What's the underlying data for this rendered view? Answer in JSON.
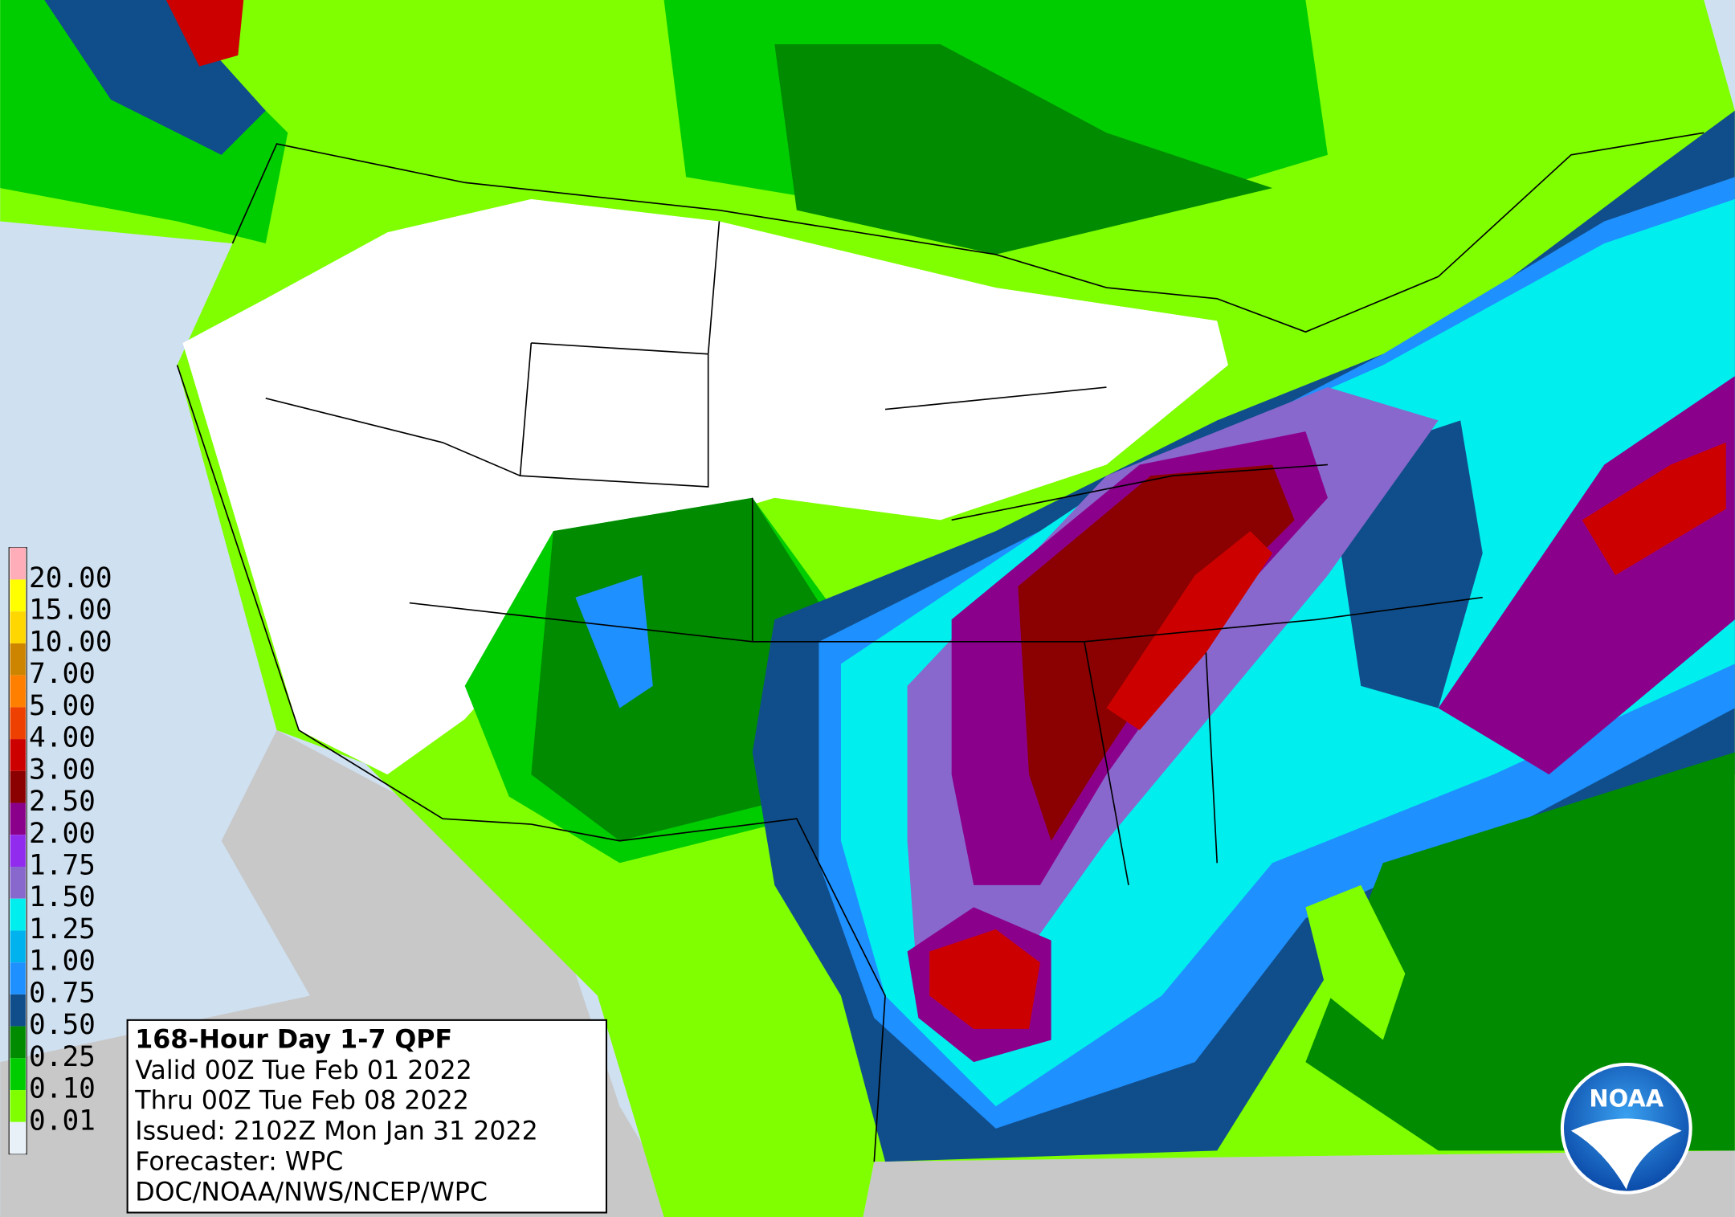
{
  "map": {
    "legend": {
      "labels": [
        "20.00",
        "15.00",
        "10.00",
        "7.00",
        "5.00",
        "4.00",
        "3.00",
        "2.50",
        "2.00",
        "1.75",
        "1.50",
        "1.25",
        "1.00",
        "0.75",
        "0.50",
        "0.25",
        "0.10",
        "0.01"
      ],
      "colors": [
        "#ffaeb9",
        "#ffff00",
        "#ffd700",
        "#cd8500",
        "#ff7f00",
        "#ee4000",
        "#cd0000",
        "#8b0000",
        "#8b008b",
        "#912cee",
        "#8968cd",
        "#00eeee",
        "#00b2ee",
        "#1e90ff",
        "#104e8b",
        "#008b00",
        "#00cd00",
        "#7fff00",
        "#e8f0f8"
      ]
    },
    "info": {
      "title": "168-Hour Day 1-7 QPF",
      "lines": [
        "Valid 00Z Tue Feb 01 2022",
        "Thru 00Z Tue Feb 08 2022",
        "Issued: 2102Z Mon Jan 31 2022",
        "Forecaster: WPC",
        "DOC/NOAA/NWS/NCEP/WPC"
      ]
    },
    "logo": "NOAA"
  }
}
